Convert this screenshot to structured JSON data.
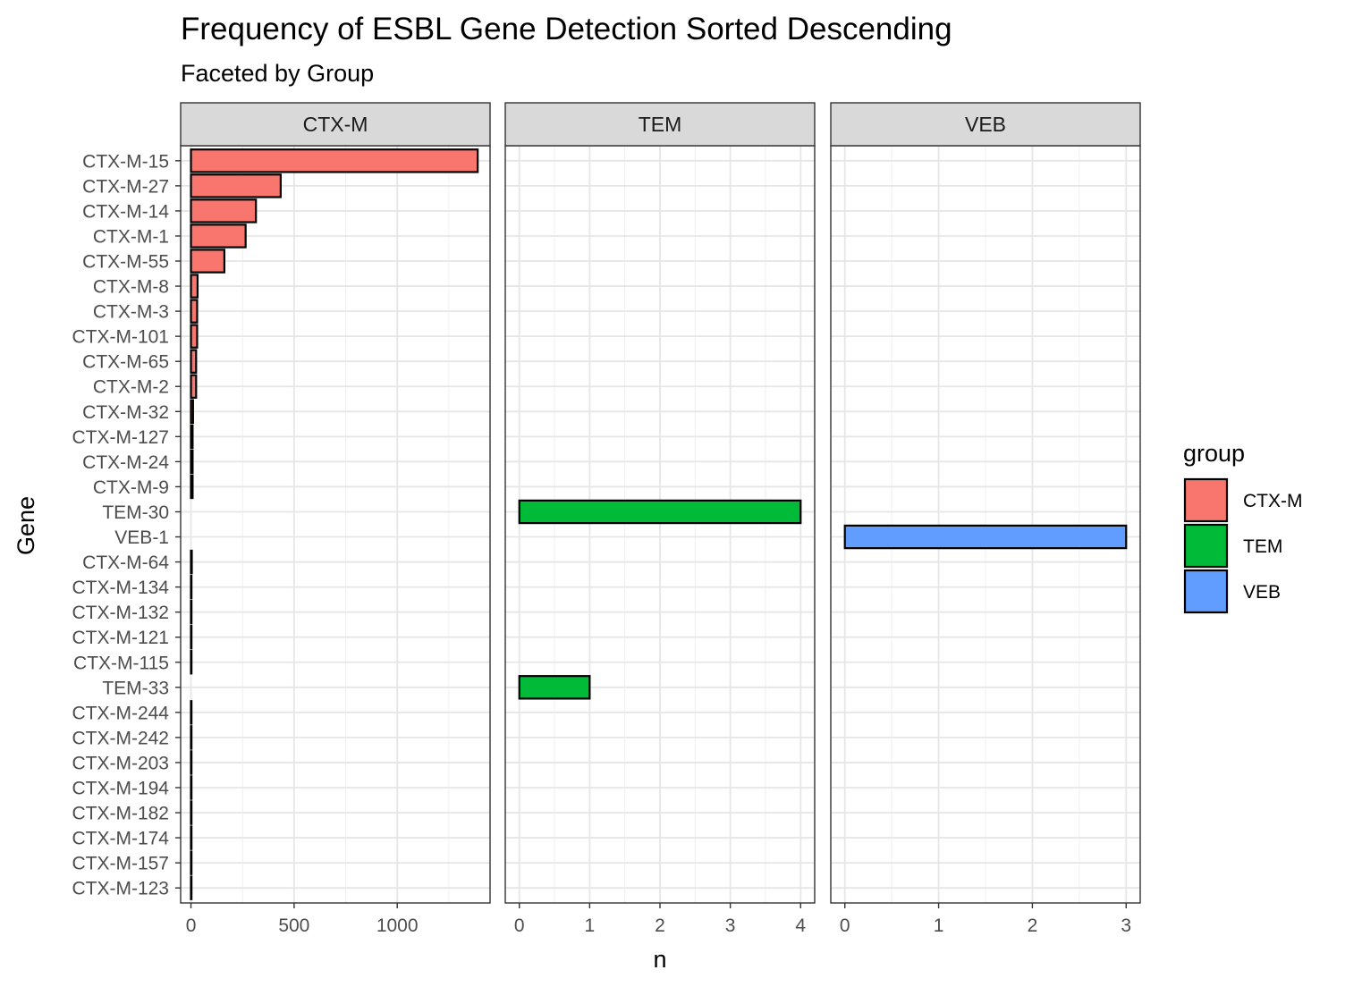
{
  "chart_data": {
    "type": "bar",
    "orientation": "horizontal",
    "title": "Frequency of ESBL Gene Detection Sorted Descending",
    "subtitle": "Faceted by Group",
    "xlabel": "n",
    "ylabel": "Gene",
    "categories": [
      "CTX-M-15",
      "CTX-M-27",
      "CTX-M-14",
      "CTX-M-1",
      "CTX-M-55",
      "CTX-M-8",
      "CTX-M-3",
      "CTX-M-101",
      "CTX-M-65",
      "CTX-M-2",
      "CTX-M-32",
      "CTX-M-127",
      "CTX-M-24",
      "CTX-M-9",
      "TEM-30",
      "VEB-1",
      "CTX-M-64",
      "CTX-M-134",
      "CTX-M-132",
      "CTX-M-121",
      "CTX-M-115",
      "TEM-33",
      "CTX-M-244",
      "CTX-M-242",
      "CTX-M-203",
      "CTX-M-194",
      "CTX-M-182",
      "CTX-M-174",
      "CTX-M-157",
      "CTX-M-123"
    ],
    "facets": [
      {
        "name": "CTX-M",
        "xlim": [
          -50,
          1450
        ],
        "ticks": [
          0,
          500,
          1000
        ],
        "tick_labels": [
          "0",
          "500",
          "1000"
        ],
        "minor_ticks": [
          250,
          750,
          1250
        ],
        "values": {
          "CTX-M-15": 1390,
          "CTX-M-27": 435,
          "CTX-M-14": 315,
          "CTX-M-1": 265,
          "CTX-M-55": 162,
          "CTX-M-8": 32,
          "CTX-M-3": 30,
          "CTX-M-101": 30,
          "CTX-M-65": 25,
          "CTX-M-2": 25,
          "CTX-M-32": 10,
          "CTX-M-127": 8,
          "CTX-M-24": 8,
          "CTX-M-9": 8,
          "CTX-M-64": 4,
          "CTX-M-134": 2,
          "CTX-M-132": 2,
          "CTX-M-121": 2,
          "CTX-M-115": 2,
          "CTX-M-244": 1,
          "CTX-M-242": 1,
          "CTX-M-203": 1,
          "CTX-M-194": 1,
          "CTX-M-182": 1,
          "CTX-M-174": 1,
          "CTX-M-157": 1,
          "CTX-M-123": 1
        }
      },
      {
        "name": "TEM",
        "xlim": [
          -0.2,
          4.2
        ],
        "ticks": [
          0,
          1,
          2,
          3,
          4
        ],
        "tick_labels": [
          "0",
          "1",
          "2",
          "3",
          "4"
        ],
        "minor_ticks": [
          0.5,
          1.5,
          2.5,
          3.5
        ],
        "values": {
          "TEM-30": 4,
          "TEM-33": 1
        }
      },
      {
        "name": "VEB",
        "xlim": [
          -0.15,
          3.15
        ],
        "ticks": [
          0,
          1,
          2,
          3
        ],
        "tick_labels": [
          "0",
          "1",
          "2",
          "3"
        ],
        "minor_ticks": [
          0.5,
          1.5,
          2.5
        ],
        "values": {
          "VEB-1": 3
        }
      }
    ],
    "legend": {
      "title": "group",
      "position": "right",
      "items": [
        {
          "label": "CTX-M",
          "color": "#F8766D"
        },
        {
          "label": "TEM",
          "color": "#00BA38"
        },
        {
          "label": "VEB",
          "color": "#619CFF"
        }
      ]
    },
    "grid": true
  }
}
